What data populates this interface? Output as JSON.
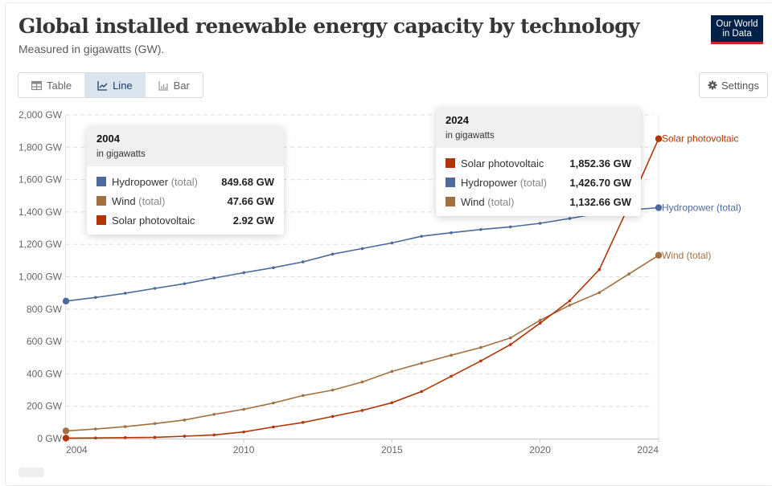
{
  "header": {
    "title": "Global installed renewable energy capacity by technology",
    "subtitle": "Measured in gigawatts (GW).",
    "logo_line1": "Our World",
    "logo_line2": "in Data"
  },
  "toolbar": {
    "tabs": [
      {
        "label": "Table",
        "icon": "table-icon",
        "active": false
      },
      {
        "label": "Line",
        "icon": "line-chart-icon",
        "active": true
      },
      {
        "label": "Bar",
        "icon": "bar-chart-icon",
        "active": false
      }
    ],
    "settings_label": "Settings",
    "settings_icon": "gear-icon"
  },
  "tooltips": [
    {
      "year": "2004",
      "unit": "in gigawatts",
      "rows": [
        {
          "name": "Hydropower",
          "note": "(total)",
          "value": "849.68 GW",
          "color": "#4c6a9c"
        },
        {
          "name": "Wind",
          "note": "(total)",
          "value": "47.66 GW",
          "color": "#a2703f"
        },
        {
          "name": "Solar photovoltaic",
          "note": "",
          "value": "2.92 GW",
          "color": "#b13507"
        }
      ]
    },
    {
      "year": "2024",
      "unit": "in gigawatts",
      "rows": [
        {
          "name": "Solar photovoltaic",
          "note": "",
          "value": "1,852.36 GW",
          "color": "#b13507"
        },
        {
          "name": "Hydropower",
          "note": "(total)",
          "value": "1,426.70 GW",
          "color": "#4c6a9c"
        },
        {
          "name": "Wind",
          "note": "(total)",
          "value": "1,132.66 GW",
          "color": "#a2703f"
        }
      ]
    }
  ],
  "chart_data": {
    "type": "line",
    "title": "Global installed renewable energy capacity by technology",
    "subtitle": "Measured in gigawatts (GW).",
    "xlabel": "",
    "ylabel": "",
    "x": [
      2004,
      2005,
      2006,
      2007,
      2008,
      2009,
      2010,
      2011,
      2012,
      2013,
      2014,
      2015,
      2016,
      2017,
      2018,
      2019,
      2020,
      2021,
      2022,
      2023,
      2024
    ],
    "xlim": [
      2004,
      2024
    ],
    "ylim": [
      0,
      2000
    ],
    "x_ticks": [
      2004,
      2010,
      2015,
      2020,
      2024
    ],
    "y_ticks": [
      0,
      200,
      400,
      600,
      800,
      1000,
      1200,
      1400,
      1600,
      1800,
      2000
    ],
    "y_tick_labels": [
      "0 GW",
      "200 GW",
      "400 GW",
      "600 GW",
      "800 GW",
      "1,000 GW",
      "1,200 GW",
      "1,400 GW",
      "1,600 GW",
      "1,800 GW",
      "2,000 GW"
    ],
    "grid": true,
    "legend": "right (inline labels at line ends)",
    "series": [
      {
        "name": "Hydropower (total)",
        "color": "#4c6a9c",
        "values": [
          849.68,
          872,
          898,
          928,
          957,
          992,
          1025,
          1056,
          1092,
          1140,
          1174,
          1209,
          1250,
          1272,
          1292,
          1308,
          1330,
          1360,
          1392,
          1412,
          1426.7
        ]
      },
      {
        "name": "Wind (total)",
        "color": "#a2703f",
        "values": [
          47.66,
          59,
          74,
          93,
          115,
          150,
          181,
          220,
          266,
          300,
          350,
          415,
          466,
          515,
          563,
          622,
          731,
          824,
          902,
          1017,
          1132.66
        ]
      },
      {
        "name": "Solar photovoltaic",
        "color": "#b13507",
        "values": [
          2.92,
          4,
          6,
          8,
          15,
          23,
          41,
          72,
          100,
          137,
          174,
          222,
          291,
          385,
          480,
          581,
          713,
          851,
          1044,
          1440,
          1852.36
        ]
      }
    ]
  }
}
